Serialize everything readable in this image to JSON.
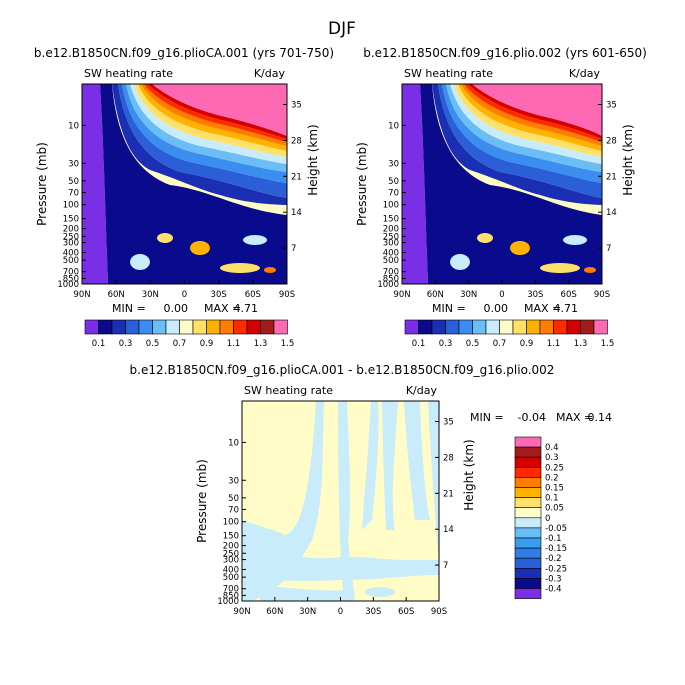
{
  "season": "DJF",
  "colorbar_palette": [
    "#7a2fe6",
    "#0a0a8c",
    "#1a2fb4",
    "#2b5fd8",
    "#3a8ef0",
    "#6bbdf5",
    "#c9ecfb",
    "#fffcc8",
    "#ffe16a",
    "#ffb300",
    "#ff7d00",
    "#ff2a00",
    "#d40000",
    "#a21c1c",
    "#ff69b4"
  ],
  "chart_data": [
    {
      "type": "contour",
      "title": "b.e12.B1850CN.f09_g16.plioCA.001 (yrs 701-750)",
      "left_label": "SW heating rate",
      "right_label": "K/day",
      "xlabel": "",
      "ylabel": "Pressure (mb)",
      "ylabel_right": "Height (km)",
      "x_ticks": [
        "90N",
        "60N",
        "30N",
        "0",
        "30S",
        "60S",
        "90S"
      ],
      "y_ticks": [
        "10",
        "30",
        "50",
        "70",
        "100",
        "150",
        "200",
        "250",
        "300",
        "400",
        "500",
        "700",
        "850",
        "1000"
      ],
      "height_ticks": [
        "35",
        "28",
        "21",
        "14",
        "7"
      ],
      "stats": {
        "min_label": "MIN =",
        "min": "0.00",
        "max_label": "MAX =",
        "max": "4.71"
      },
      "levels": [
        "0.1",
        "0.2",
        "0.3",
        "0.4",
        "0.5",
        "0.6",
        "0.7",
        "0.8",
        "0.9",
        "1",
        "1.1",
        "1.2",
        "1.3",
        "1.4",
        "1.5"
      ],
      "level_labels": [
        "0.1",
        "0.3",
        "0.5",
        "0.7",
        "0.9",
        "1.1",
        "1.3",
        "1.5"
      ]
    },
    {
      "type": "contour",
      "title": "b.e12.B1850CN.f09_g16.plio.002 (yrs 601-650)",
      "left_label": "SW heating rate",
      "right_label": "K/day",
      "xlabel": "",
      "ylabel": "Pressure (mb)",
      "ylabel_right": "Height (km)",
      "x_ticks": [
        "90N",
        "60N",
        "30N",
        "0",
        "30S",
        "60S",
        "90S"
      ],
      "y_ticks": [
        "10",
        "30",
        "50",
        "70",
        "100",
        "150",
        "200",
        "250",
        "300",
        "400",
        "500",
        "700",
        "850",
        "1000"
      ],
      "height_ticks": [
        "35",
        "28",
        "21",
        "14",
        "7"
      ],
      "stats": {
        "min_label": "MIN =",
        "min": "0.00",
        "max_label": "MAX =",
        "max": "4.71"
      },
      "levels": [
        "0.1",
        "0.2",
        "0.3",
        "0.4",
        "0.5",
        "0.6",
        "0.7",
        "0.8",
        "0.9",
        "1",
        "1.1",
        "1.2",
        "1.3",
        "1.4",
        "1.5"
      ],
      "level_labels": [
        "0.1",
        "0.3",
        "0.5",
        "0.7",
        "0.9",
        "1.1",
        "1.3",
        "1.5"
      ]
    },
    {
      "type": "contour",
      "title": "b.e12.B1850CN.f09_g16.plioCA.001 - b.e12.B1850CN.f09_g16.plio.002",
      "left_label": "SW heating rate",
      "right_label": "K/day",
      "xlabel": "",
      "ylabel": "Pressure (mb)",
      "ylabel_right": "Height (km)",
      "x_ticks": [
        "90N",
        "60N",
        "30N",
        "0",
        "30S",
        "60S",
        "90S"
      ],
      "y_ticks": [
        "10",
        "30",
        "50",
        "70",
        "100",
        "150",
        "200",
        "250",
        "300",
        "400",
        "500",
        "700",
        "850",
        "1000"
      ],
      "height_ticks": [
        "35",
        "28",
        "21",
        "14",
        "7"
      ],
      "stats": {
        "min_label": "MIN =",
        "min": "-0.04",
        "max_label": "MAX =",
        "max": "0.14"
      },
      "levels": [
        "-0.4",
        "-0.3",
        "-0.25",
        "-0.2",
        "-0.15",
        "-0.1",
        "-0.05",
        "0",
        "0.05",
        "0.1",
        "0.15",
        "0.2",
        "0.25",
        "0.3",
        "0.4"
      ],
      "diff_palette": [
        "#7a2fe6",
        "#0a0a8c",
        "#1a2fb4",
        "#2b5fd8",
        "#2f7de6",
        "#3a9ef0",
        "#6bbdf5",
        "#c9ecfb",
        "#fffcc8",
        "#ffe16a",
        "#ffb300",
        "#ff7d00",
        "#ff2a00",
        "#d40000",
        "#a21c1c",
        "#ff69b4"
      ]
    }
  ]
}
